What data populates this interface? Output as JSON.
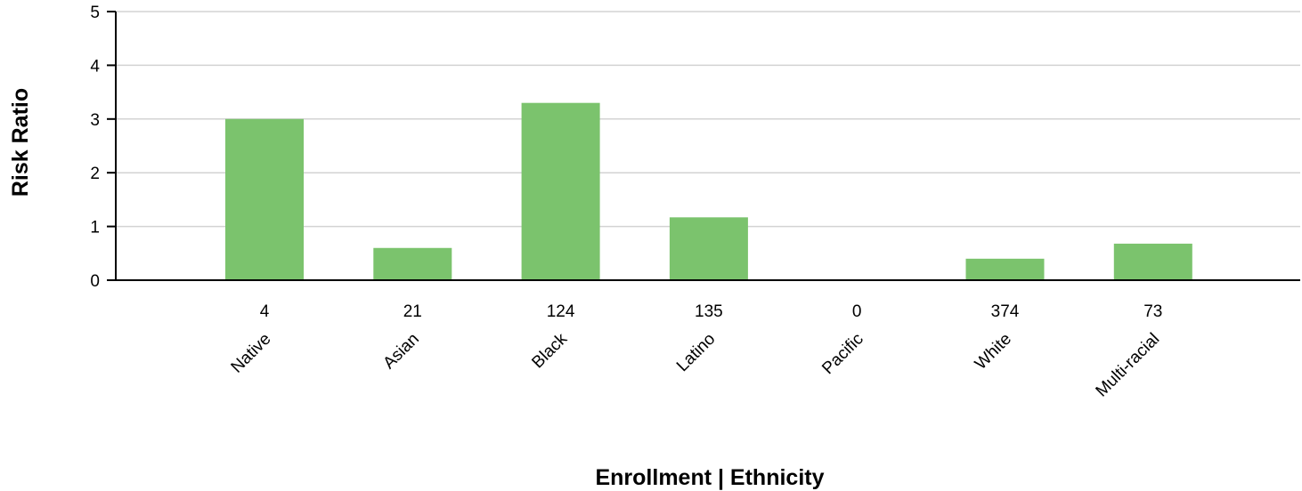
{
  "chart_data": {
    "type": "bar",
    "title": "",
    "xlabel": "Enrollment | Ethnicity",
    "ylabel": "Risk Ratio",
    "ylim": [
      0,
      5
    ],
    "yticks": [
      "0",
      "1",
      "2",
      "3",
      "4",
      "5"
    ],
    "grid": true,
    "categories": [
      "Native",
      "Asian",
      "Black",
      "Latino",
      "Pacific",
      "White",
      "Multi-racial"
    ],
    "enrollment": [
      "4",
      "21",
      "124",
      "135",
      "0",
      "374",
      "73"
    ],
    "values": [
      3.0,
      0.6,
      3.3,
      1.17,
      0,
      0.4,
      0.68
    ],
    "bar_color": "#7bc36d"
  }
}
